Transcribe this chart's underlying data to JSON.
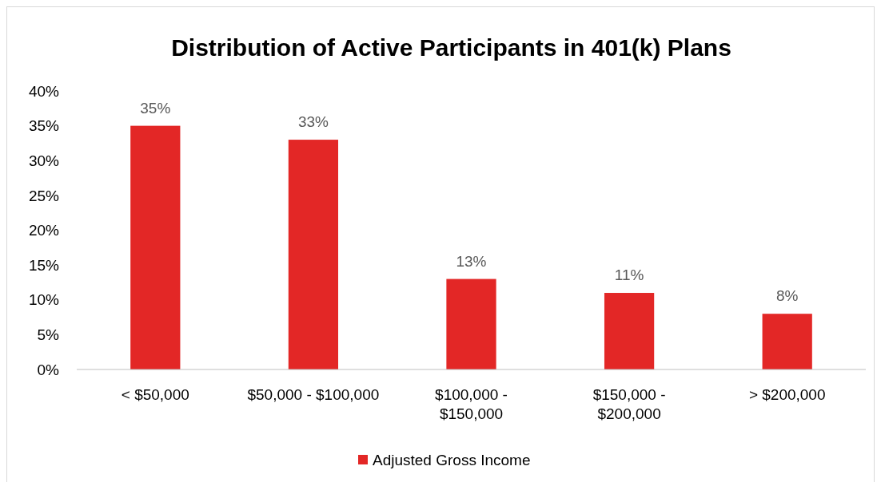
{
  "chart_data": {
    "type": "bar",
    "title": "Distribution of Active Participants in 401(k) Plans",
    "categories": [
      "< $50,000",
      "$50,000 - $100,000",
      "$100,000 - $150,000",
      "$150,000 - $200,000",
      "> $200,000"
    ],
    "series": [
      {
        "name": "Adjusted Gross Income",
        "color": "#e32726",
        "values": [
          35,
          33,
          13,
          11,
          8
        ]
      }
    ],
    "ylim": [
      0,
      40
    ],
    "yticks": [
      {
        "value": 0,
        "label": "0%"
      },
      {
        "value": 5,
        "label": "5%"
      },
      {
        "value": 10,
        "label": "10%"
      },
      {
        "value": 15,
        "label": "15%"
      },
      {
        "value": 20,
        "label": "20%"
      },
      {
        "value": 25,
        "label": "25%"
      },
      {
        "value": 30,
        "label": "30%"
      },
      {
        "value": 35,
        "label": "35%"
      },
      {
        "value": 40,
        "label": "40%"
      }
    ],
    "value_labels": [
      "35%",
      "33%",
      "13%",
      "11%",
      "8%"
    ],
    "grid": false,
    "legend": "bottom"
  }
}
